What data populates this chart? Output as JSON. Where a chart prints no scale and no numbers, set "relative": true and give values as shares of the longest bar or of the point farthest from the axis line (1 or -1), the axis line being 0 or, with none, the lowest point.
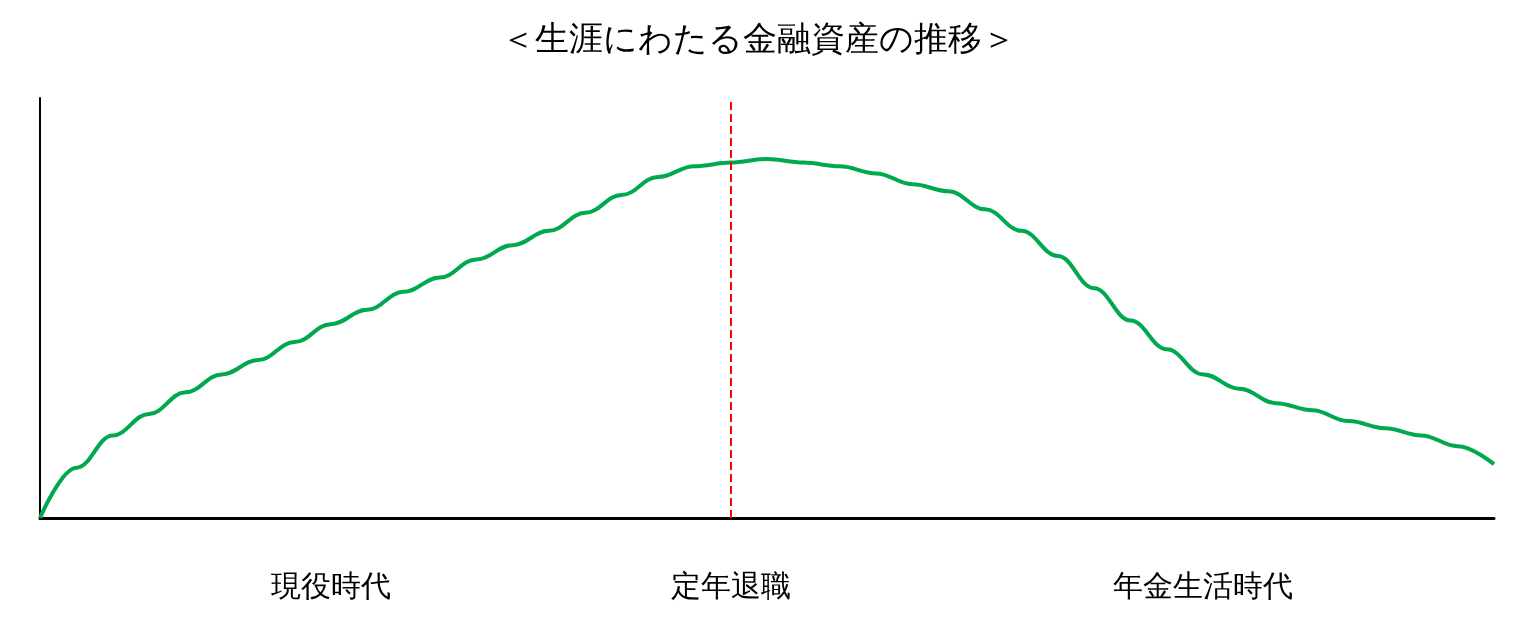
{
  "chart_data": {
    "type": "line",
    "title": "＜生涯にわたる金融資産の推移＞",
    "relative": true,
    "categories": [
      null,
      null,
      null,
      null,
      null,
      null,
      null,
      null,
      "現役時代",
      null,
      null,
      null,
      null,
      null,
      null,
      null,
      null,
      null,
      null,
      "定年退職",
      null,
      null,
      null,
      null,
      null,
      null,
      null,
      null,
      null,
      null,
      null,
      null,
      "年金生活時代",
      null,
      null,
      null,
      null,
      null,
      null,
      null,
      null
    ],
    "series": [
      {
        "color": "#00a84f",
        "values": [
          0,
          0.14,
          0.23,
          0.29,
          0.35,
          0.4,
          0.44,
          0.49,
          0.54,
          0.58,
          0.63,
          0.67,
          0.72,
          0.76,
          0.8,
          0.85,
          0.9,
          0.95,
          0.98,
          0.99,
          1,
          0.99,
          0.98,
          0.96,
          0.93,
          0.91,
          0.86,
          0.8,
          0.73,
          0.64,
          0.55,
          0.47,
          0.4,
          0.36,
          0.32,
          0.3,
          0.27,
          0.25,
          0.23,
          0.2,
          0.15
        ]
      }
    ],
    "ref_lines": [
      {
        "axis": "x",
        "value": "定年退職",
        "color": "#ff0000",
        "line_style": "dashed"
      }
    ],
    "marker": "none",
    "line_style": "solid",
    "grid": false
  }
}
